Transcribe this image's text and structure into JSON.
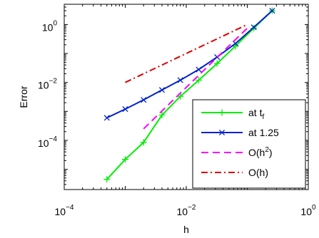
{
  "chart_data": {
    "type": "line",
    "xscale": "log",
    "yscale": "log",
    "xlim": [
      0.0001,
      1
    ],
    "ylim": [
      2e-06,
      5
    ],
    "xlabel": "h",
    "ylabel": "Error",
    "x_ticks": [
      {
        "value": 0.0001,
        "base": "10",
        "exp": "−4"
      },
      {
        "value": 0.01,
        "base": "10",
        "exp": "−2"
      },
      {
        "value": 1,
        "base": "10",
        "exp": "0"
      }
    ],
    "y_ticks": [
      {
        "value": 0.0001,
        "base": "10",
        "exp": "−4"
      },
      {
        "value": 0.01,
        "base": "10",
        "exp": "−2"
      },
      {
        "value": 1,
        "base": "10",
        "exp": "0"
      }
    ],
    "legend": {
      "position": "bottom-right"
    },
    "series": [
      {
        "name": "at t",
        "name_sub": "f",
        "color": "#00ee00",
        "linestyle": "solid",
        "marker": "plus",
        "x": [
          0.0005,
          0.001,
          0.002,
          0.004,
          0.008,
          0.016,
          0.032,
          0.064,
          0.128,
          0.256
        ],
        "y": [
          4.5e-06,
          2.2e-05,
          8.5e-05,
          0.00075,
          0.0033,
          0.012,
          0.045,
          0.18,
          0.75,
          3.0
        ]
      },
      {
        "name": "at 1.25",
        "color": "#0022cc",
        "linestyle": "solid",
        "marker": "x",
        "x": [
          0.0005,
          0.001,
          0.002,
          0.004,
          0.008,
          0.016,
          0.032,
          0.064,
          0.128,
          0.256
        ],
        "y": [
          0.0006,
          0.0012,
          0.0025,
          0.0055,
          0.012,
          0.028,
          0.075,
          0.22,
          0.8,
          3.0
        ]
      },
      {
        "name": "O(h",
        "name_sup": "2",
        "name_end": ")",
        "color": "#ff00ff",
        "linestyle": "dashed",
        "marker": "none",
        "x": [
          0.002,
          0.1
        ],
        "y": [
          0.00025,
          0.75
        ]
      },
      {
        "name": "O(h)",
        "color": "#dd0000",
        "linestyle": "dashdot",
        "marker": "none",
        "x": [
          0.001,
          0.1
        ],
        "y": [
          0.01,
          1.0
        ]
      }
    ]
  }
}
